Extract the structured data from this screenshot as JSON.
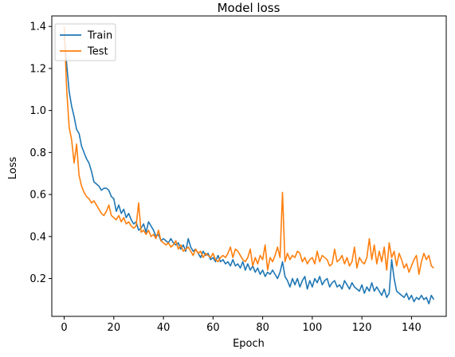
{
  "chart_data": {
    "type": "line",
    "title": "Model loss",
    "xlabel": "Epoch",
    "ylabel": "Loss",
    "xlim": [
      -5,
      154
    ],
    "ylim": [
      0.02,
      1.45
    ],
    "xticks": [
      0,
      20,
      40,
      60,
      80,
      100,
      120,
      140
    ],
    "yticks": [
      0.2,
      0.4,
      0.6,
      0.8,
      1.0,
      1.2,
      1.4
    ],
    "ytick_labels": [
      "0.2",
      "0.4",
      "0.6",
      "0.8",
      "1.0",
      "1.2",
      "1.4"
    ],
    "legend_position": "top-left",
    "grid": false,
    "series": [
      {
        "name": "Train",
        "color": "#1f77b4",
        "values": [
          1.36,
          1.22,
          1.09,
          1.02,
          0.97,
          0.91,
          0.89,
          0.83,
          0.8,
          0.77,
          0.75,
          0.71,
          0.66,
          0.65,
          0.64,
          0.62,
          0.63,
          0.63,
          0.62,
          0.59,
          0.58,
          0.52,
          0.55,
          0.51,
          0.53,
          0.49,
          0.51,
          0.48,
          0.46,
          0.47,
          0.43,
          0.44,
          0.46,
          0.42,
          0.47,
          0.45,
          0.43,
          0.4,
          0.41,
          0.38,
          0.39,
          0.38,
          0.37,
          0.39,
          0.37,
          0.36,
          0.37,
          0.34,
          0.36,
          0.33,
          0.39,
          0.35,
          0.33,
          0.34,
          0.32,
          0.3,
          0.33,
          0.31,
          0.32,
          0.29,
          0.3,
          0.28,
          0.31,
          0.28,
          0.29,
          0.27,
          0.28,
          0.26,
          0.29,
          0.26,
          0.27,
          0.25,
          0.28,
          0.24,
          0.27,
          0.24,
          0.26,
          0.23,
          0.25,
          0.22,
          0.24,
          0.21,
          0.23,
          0.22,
          0.24,
          0.22,
          0.2,
          0.23,
          0.28,
          0.21,
          0.19,
          0.16,
          0.2,
          0.17,
          0.2,
          0.16,
          0.19,
          0.21,
          0.15,
          0.19,
          0.16,
          0.2,
          0.18,
          0.21,
          0.17,
          0.19,
          0.2,
          0.16,
          0.18,
          0.19,
          0.16,
          0.17,
          0.15,
          0.19,
          0.17,
          0.15,
          0.18,
          0.16,
          0.15,
          0.14,
          0.17,
          0.13,
          0.16,
          0.14,
          0.18,
          0.14,
          0.16,
          0.14,
          0.12,
          0.15,
          0.11,
          0.13,
          0.29,
          0.2,
          0.14,
          0.13,
          0.12,
          0.11,
          0.13,
          0.1,
          0.12,
          0.09,
          0.11,
          0.1,
          0.12,
          0.1,
          0.11,
          0.08,
          0.12,
          0.1
        ]
      },
      {
        "name": "Test",
        "color": "#ff7f0e",
        "values": [
          1.4,
          1.1,
          0.92,
          0.86,
          0.75,
          0.84,
          0.69,
          0.64,
          0.61,
          0.59,
          0.58,
          0.56,
          0.57,
          0.55,
          0.53,
          0.51,
          0.5,
          0.52,
          0.55,
          0.5,
          0.49,
          0.48,
          0.5,
          0.47,
          0.49,
          0.46,
          0.47,
          0.45,
          0.44,
          0.45,
          0.56,
          0.42,
          0.43,
          0.41,
          0.43,
          0.4,
          0.41,
          0.39,
          0.43,
          0.38,
          0.37,
          0.36,
          0.37,
          0.35,
          0.36,
          0.38,
          0.34,
          0.36,
          0.33,
          0.34,
          0.35,
          0.33,
          0.31,
          0.34,
          0.32,
          0.33,
          0.3,
          0.32,
          0.31,
          0.3,
          0.32,
          0.29,
          0.28,
          0.3,
          0.31,
          0.3,
          0.32,
          0.35,
          0.3,
          0.34,
          0.33,
          0.31,
          0.29,
          0.28,
          0.3,
          0.34,
          0.26,
          0.3,
          0.27,
          0.31,
          0.29,
          0.36,
          0.24,
          0.3,
          0.28,
          0.31,
          0.35,
          0.3,
          0.61,
          0.28,
          0.32,
          0.29,
          0.31,
          0.3,
          0.33,
          0.32,
          0.28,
          0.3,
          0.27,
          0.29,
          0.3,
          0.27,
          0.33,
          0.28,
          0.31,
          0.3,
          0.29,
          0.26,
          0.27,
          0.34,
          0.28,
          0.29,
          0.31,
          0.27,
          0.3,
          0.26,
          0.28,
          0.35,
          0.25,
          0.3,
          0.28,
          0.27,
          0.3,
          0.39,
          0.29,
          0.36,
          0.27,
          0.33,
          0.28,
          0.35,
          0.24,
          0.37,
          0.3,
          0.33,
          0.26,
          0.32,
          0.29,
          0.25,
          0.27,
          0.23,
          0.26,
          0.29,
          0.31,
          0.22,
          0.28,
          0.32,
          0.29,
          0.31,
          0.26,
          0.25
        ]
      }
    ]
  }
}
